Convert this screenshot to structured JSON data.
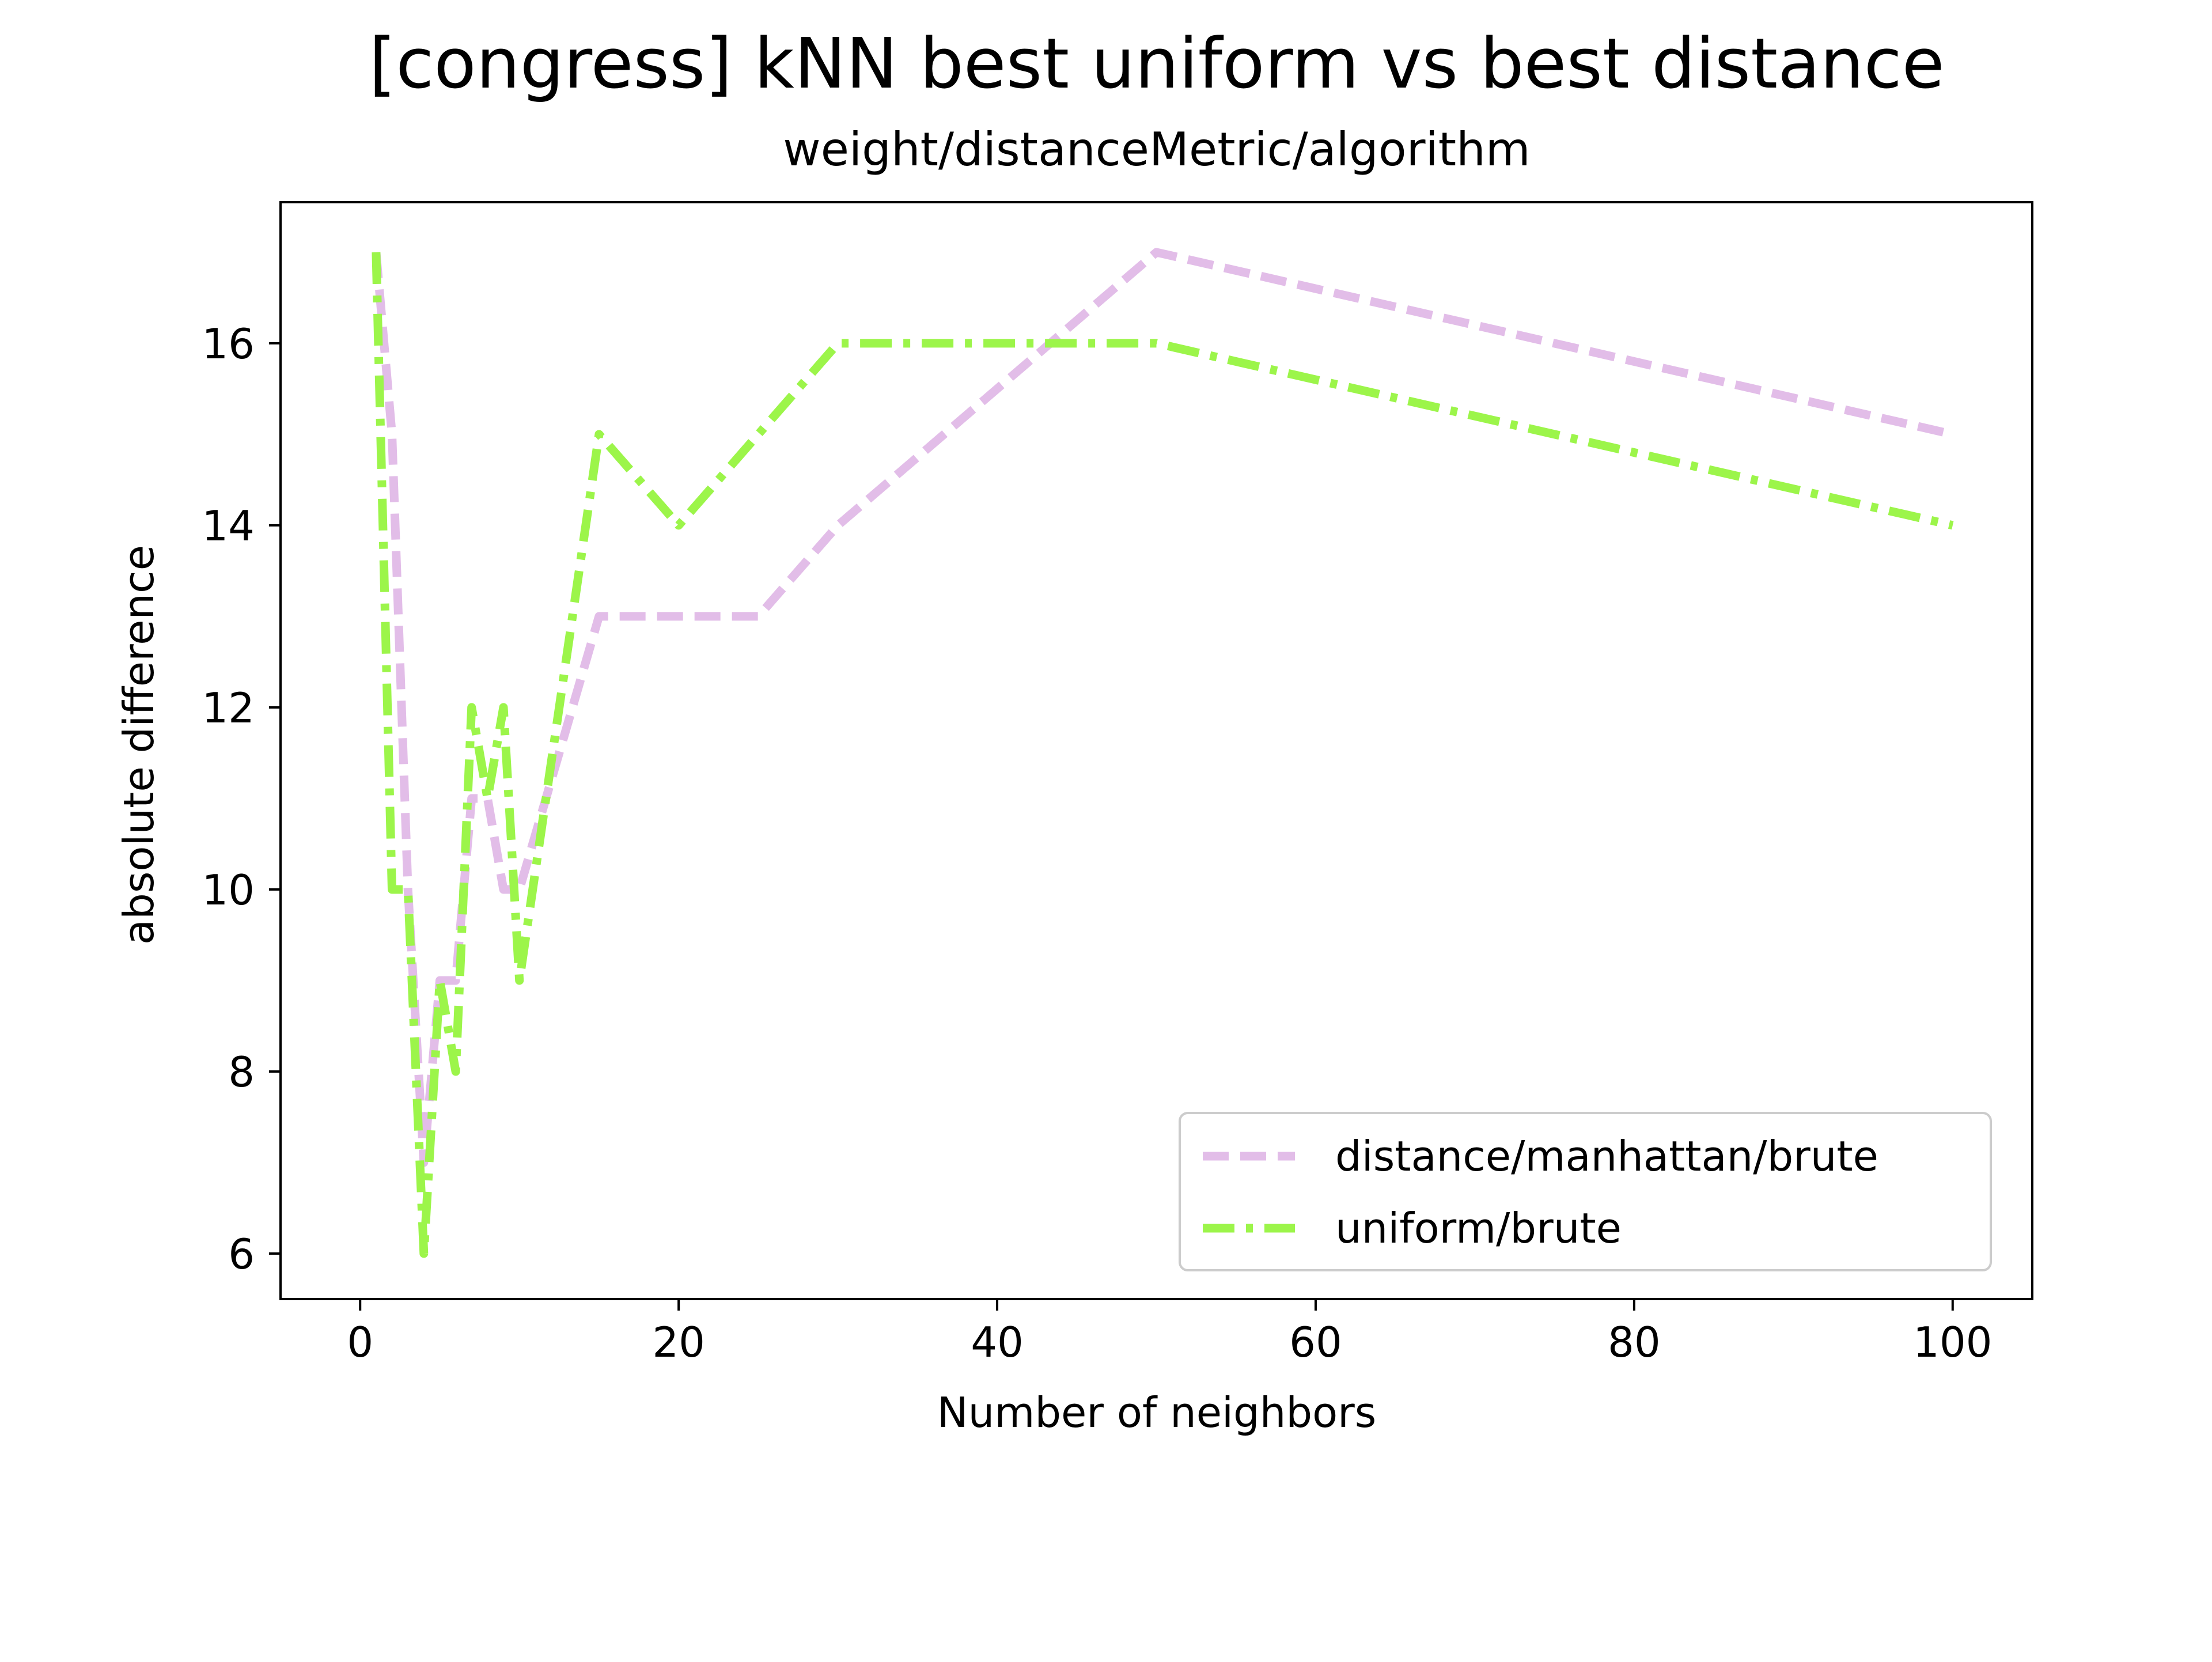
{
  "chart_data": {
    "type": "line",
    "title": "[congress] kNN best uniform vs best distance",
    "subtitle": "weight/distanceMetric/algorithm",
    "xlabel": "Number of neighbors",
    "ylabel": "absolute difference",
    "xlim": [
      -5,
      105
    ],
    "ylim": [
      5.5,
      17.55
    ],
    "xticks": [
      0,
      20,
      40,
      60,
      80,
      100
    ],
    "yticks": [
      6,
      8,
      10,
      12,
      14,
      16
    ],
    "grid": false,
    "legend_position": "lower-right",
    "series": [
      {
        "name": "distance/manhattan/brute",
        "color": "#e2bde8",
        "style": "dashed",
        "x": [
          1,
          2,
          3,
          4,
          5,
          6,
          7,
          8,
          9,
          10,
          15,
          20,
          25,
          30,
          40,
          50,
          100
        ],
        "y": [
          17,
          15,
          10,
          7,
          9,
          9,
          11,
          11,
          10,
          10,
          13,
          13,
          13,
          14,
          15.5,
          17,
          15
        ]
      },
      {
        "name": "uniform/brute",
        "color": "#9cf54a",
        "style": "dashdot",
        "x": [
          1,
          2,
          3,
          4,
          5,
          6,
          7,
          8,
          9,
          10,
          15,
          20,
          25,
          30,
          40,
          50,
          100
        ],
        "y": [
          17,
          10,
          10,
          6,
          9,
          8,
          12,
          11,
          12,
          9,
          15,
          14,
          15,
          16,
          16,
          16,
          14
        ]
      }
    ]
  }
}
